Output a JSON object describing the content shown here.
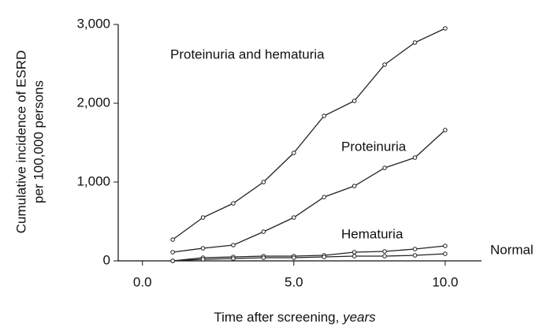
{
  "chart_data": {
    "type": "line",
    "x_label": {
      "text": "Time after screening,",
      "unit": "years"
    },
    "y_label": [
      "Cumulative incidence of ESRD",
      "per 100,000 persons"
    ],
    "x": [
      1,
      2,
      3,
      4,
      5,
      6,
      7,
      8,
      9,
      10
    ],
    "series": [
      {
        "name": "Proteinuria and hematuria",
        "color": "#222222",
        "values": [
          270,
          550,
          730,
          1000,
          1370,
          1840,
          2030,
          2490,
          2770,
          2950
        ]
      },
      {
        "name": "Proteinuria",
        "color": "#222222",
        "values": [
          110,
          160,
          200,
          370,
          550,
          810,
          950,
          1180,
          1310,
          1660
        ]
      },
      {
        "name": "Hematuria",
        "color": "#222222",
        "values": [
          0,
          40,
          50,
          60,
          60,
          70,
          110,
          120,
          150,
          190
        ]
      },
      {
        "name": "Normal",
        "color": "#222222",
        "values": [
          0,
          20,
          30,
          40,
          40,
          50,
          60,
          60,
          70,
          90
        ]
      }
    ],
    "xlim": [
      -0.8,
      11.2
    ],
    "ylim": [
      0,
      3000
    ],
    "xticks": [
      {
        "value": 0,
        "label": "0.0"
      },
      {
        "value": 5,
        "label": "5.0"
      },
      {
        "value": 10,
        "label": "10.0"
      }
    ],
    "yticks": [
      0,
      {
        "value": 1000,
        "label": "1,000"
      },
      {
        "value": 2000,
        "label": "2,000"
      },
      {
        "value": 3000,
        "label": "3,000"
      }
    ],
    "grid": false
  }
}
